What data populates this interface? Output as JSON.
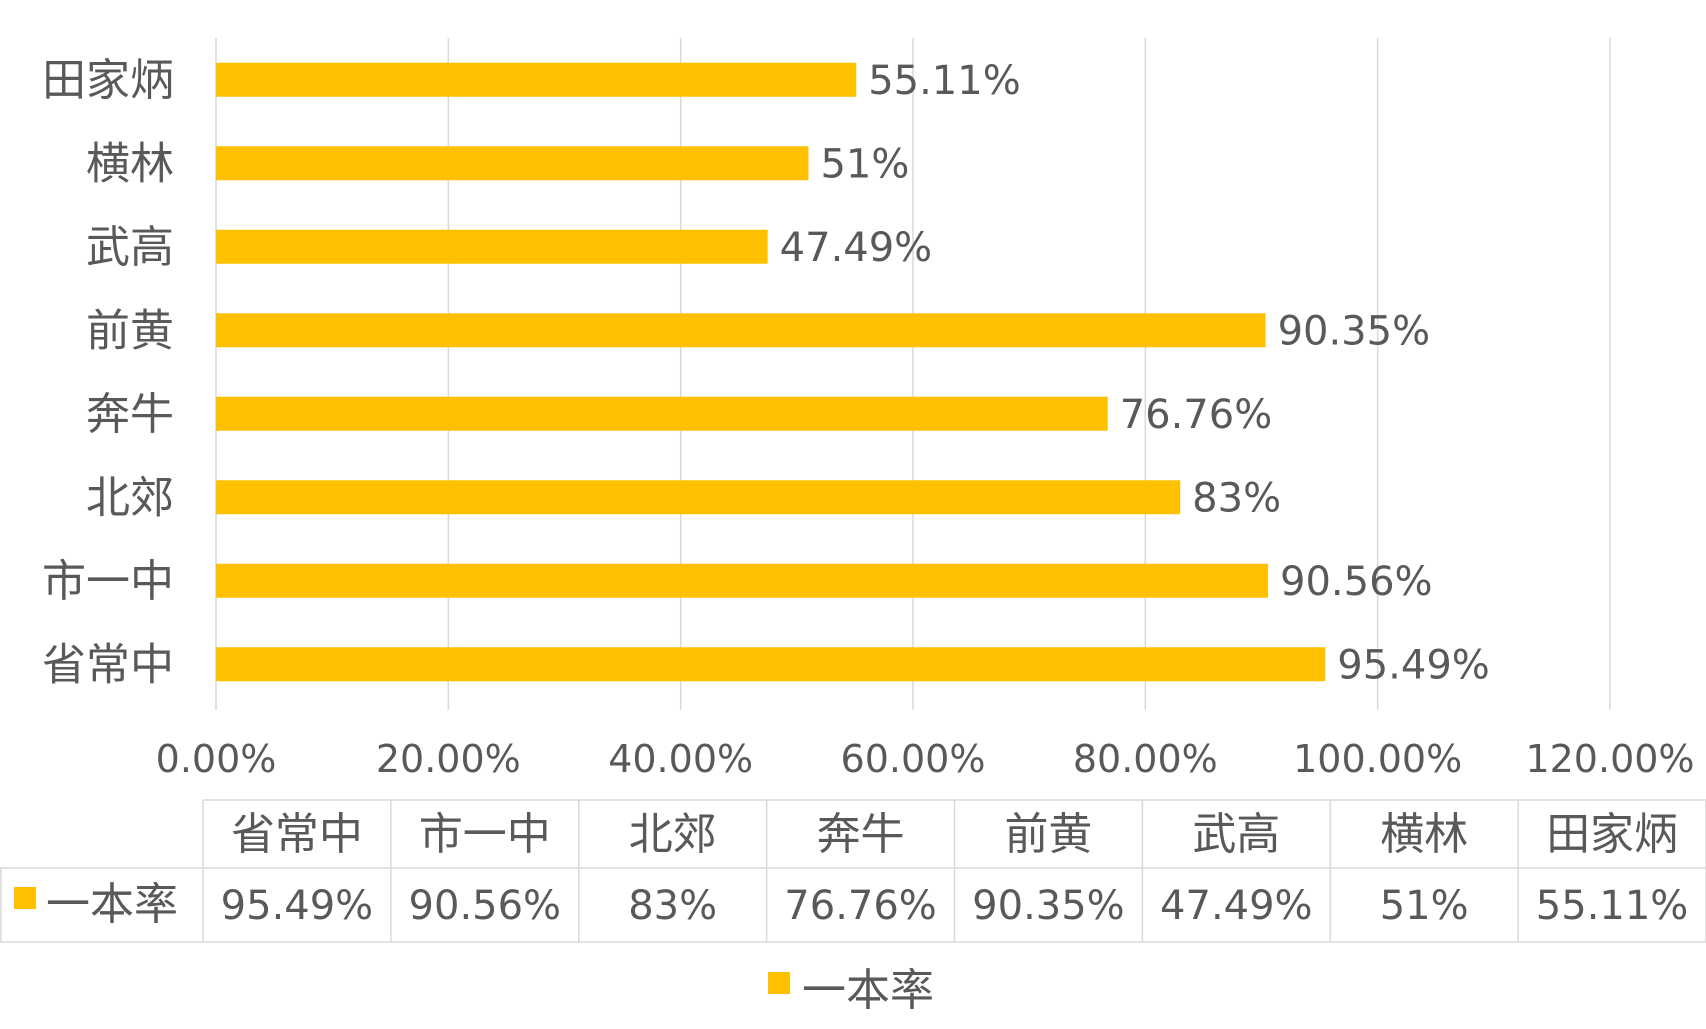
{
  "chart_data": {
    "type": "bar",
    "orientation": "horizontal",
    "title": "",
    "xlabel": "",
    "ylabel": "",
    "xlim": [
      0,
      120
    ],
    "x_ticks": [
      0,
      20,
      40,
      60,
      80,
      100,
      120
    ],
    "x_tick_labels": [
      "0.00%",
      "20.00%",
      "40.00%",
      "60.00%",
      "80.00%",
      "100.00%",
      "120.00%"
    ],
    "grid": true,
    "categories": [
      "省常中",
      "市一中",
      "北郊",
      "奔牛",
      "前黄",
      "武高",
      "横林",
      "田家炳"
    ],
    "series": [
      {
        "name": "一本率",
        "color": "#FFC000",
        "values": [
          95.49,
          90.56,
          83,
          76.76,
          90.35,
          47.49,
          51,
          55.11
        ],
        "labels": [
          "95.49%",
          "90.56%",
          "83%",
          "76.76%",
          "90.35%",
          "47.49%",
          "51%",
          "55.11%"
        ]
      }
    ],
    "data_table": true,
    "legend": {
      "position": "bottom",
      "entries": [
        "一本率"
      ]
    }
  },
  "colors": {
    "series": "#FFC000",
    "grid": "#D9D9D9",
    "text": "#595959",
    "table_border": "#D9D9D9"
  }
}
